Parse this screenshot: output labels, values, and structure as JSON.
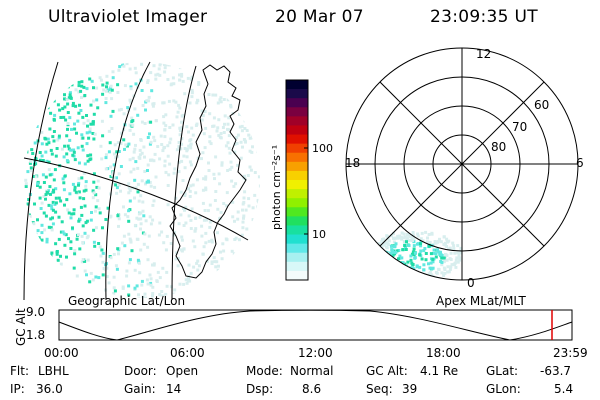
{
  "header": {
    "instrument": "Ultraviolet Imager",
    "date": "20 Mar 07",
    "time": "23:09:35 UT"
  },
  "left_panel": {
    "label": "Geographic Lat/Lon"
  },
  "right_panel": {
    "label": "Apex MLat/MLT",
    "mlt_labels": [
      "12",
      "18",
      "6",
      "0"
    ],
    "lat_labels": [
      "60",
      "70",
      "80"
    ]
  },
  "colorbar": {
    "unit_label": "photon cm⁻²s⁻¹",
    "ticks": [
      "100",
      "10"
    ],
    "colors": [
      "#000030",
      "#1a0a4a",
      "#4a0050",
      "#7a0040",
      "#a00028",
      "#c00010",
      "#e01000",
      "#f04000",
      "#f87000",
      "#f8a000",
      "#f8d000",
      "#f0f000",
      "#c0f000",
      "#90f000",
      "#50e820",
      "#20e060",
      "#18e0a0",
      "#20e0d0",
      "#60e8e8",
      "#a8f0f0",
      "#d8f8f8",
      "#f4fcfc"
    ]
  },
  "timeline": {
    "ylabel": "GC Alt",
    "yticks": [
      "9.0",
      "1.8"
    ],
    "xticks": [
      "00:00",
      "06:00",
      "12:00",
      "18:00",
      "23:59"
    ],
    "marker_color": "#e00000"
  },
  "status": {
    "flt_label": "Flt:",
    "flt_value": "LBHL",
    "ip_label": "IP:",
    "ip_value": "36.0",
    "door_label": "Door:",
    "door_value": "Open",
    "gain_label": "Gain:",
    "gain_value": "14",
    "mode_label": "Mode:",
    "mode_value": "Normal",
    "dsp_label": "Dsp:",
    "dsp_value": "8.6",
    "gcalt_label": "GC Alt:",
    "gcalt_value": "4.1 Re",
    "seq_label": "Seq:",
    "seq_value": "39",
    "glat_label": "GLat:",
    "glat_value": "-63.7",
    "glon_label": "GLon:",
    "glon_value": "5.4"
  },
  "colors": {
    "aurora_bright": "#20dca8",
    "aurora_mid": "#60e8e0",
    "aurora_faint": "#d8eeee"
  }
}
